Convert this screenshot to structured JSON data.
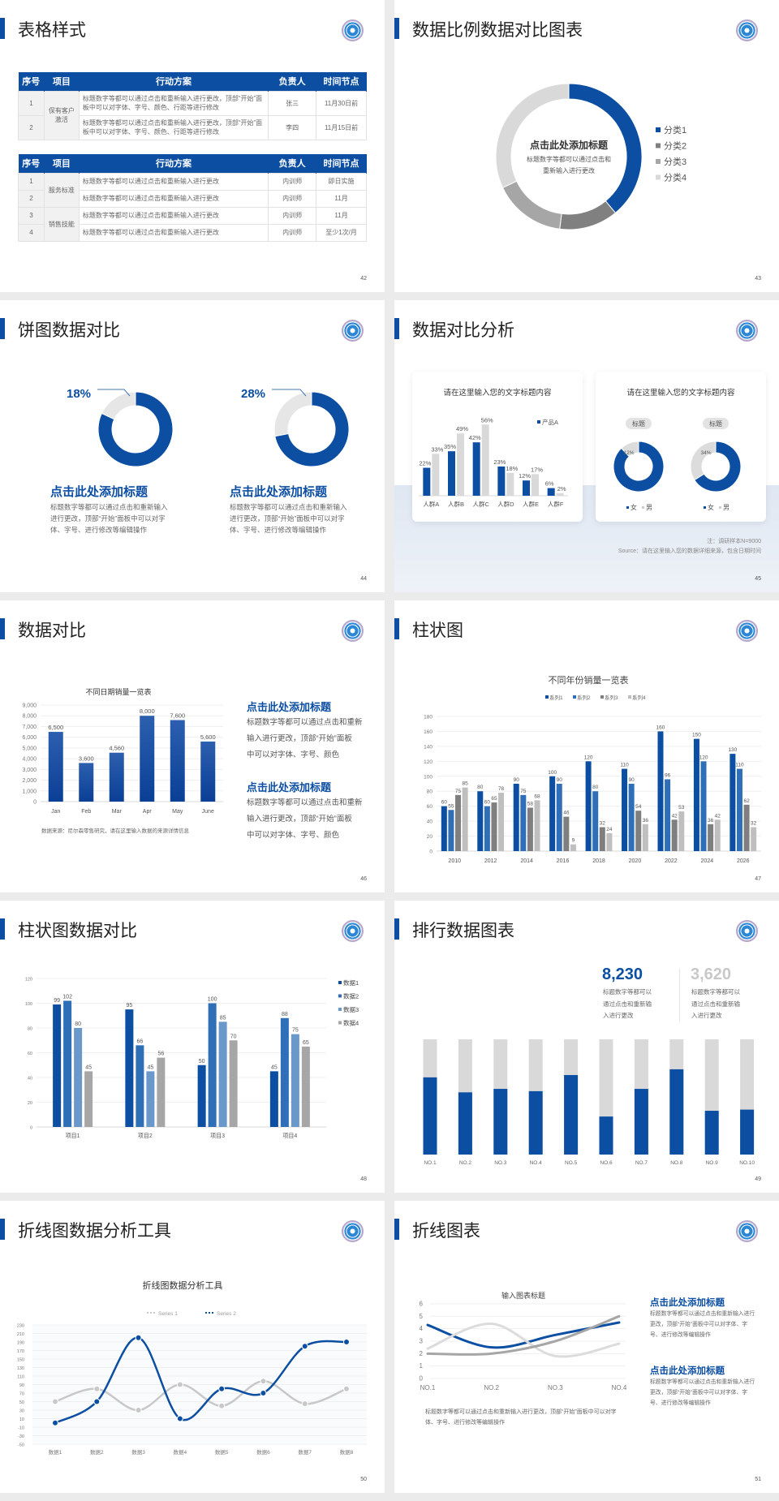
{
  "colors": {
    "blue": "#0b4ea2",
    "blue2": "#2e6fb7",
    "blue3": "#6a98cb",
    "gray": "#a6a6a6",
    "gray_dark": "#7f7f7f",
    "gray_light": "#d9d9d9"
  },
  "slides": [
    {
      "title": "表格样式",
      "page": "42",
      "table1": {
        "headers": [
          "序号",
          "项目",
          "行动方案",
          "负责人",
          "时间节点"
        ],
        "groups": [
          {
            "item": "保有客户激活",
            "rows": [
              {
                "no": "1",
                "plan": "标题数字等都可以通过点击和重新输入进行更改，顶部“开始”面板中可以对字体、字号、颜色、行距等进行修改",
                "owner": "张三",
                "time": "11月30日前"
              },
              {
                "no": "2",
                "plan": "标题数字等都可以通过点击和重新输入进行更改，顶部“开始”面板中可以对字体、字号、颜色、行距等进行修改",
                "owner": "李四",
                "time": "11月15日前"
              }
            ]
          }
        ]
      },
      "table2": {
        "headers": [
          "序号",
          "项目",
          "行动方案",
          "负责人",
          "时间节点"
        ],
        "groups": [
          {
            "item": "服务标准",
            "rows": [
              {
                "no": "1",
                "plan": "标题数字等都可以通过点击和重新输入进行更改",
                "owner": "内训师",
                "time": "即日实施"
              },
              {
                "no": "2",
                "plan": "标题数字等都可以通过点击和重新输入进行更改",
                "owner": "内训师",
                "time": "11月"
              }
            ]
          },
          {
            "item": "销售技能",
            "rows": [
              {
                "no": "3",
                "plan": "标题数字等都可以通过点击和重新输入进行更改",
                "owner": "内训师",
                "time": "11月"
              },
              {
                "no": "4",
                "plan": "标题数字等都可以通过点击和重新输入进行更改",
                "owner": "内训师",
                "time": "至少1次/月"
              }
            ]
          }
        ]
      }
    },
    {
      "title": "数据比例数据对比图表",
      "page": "43",
      "center_title": "点击此处添加标题",
      "center_text": [
        "标题数字等都可以通过点击和",
        "重新输入进行更改"
      ]
    },
    {
      "title": "饼图数据对比",
      "page": "44",
      "blocks": [
        {
          "heading": "点击此处添加标题",
          "text": "标题数字等都可以通过点击和重新输入进行更改，顶部“开始”面板中可以对字体、字号、进行修改等编辑操作"
        },
        {
          "heading": "点击此处添加标题",
          "text": "标题数字等都可以通过点击和重新输入进行更改，顶部“开始”面板中可以对字体、字号、进行修改等编辑操作"
        }
      ]
    },
    {
      "title": "数据对比分析",
      "page": "45",
      "card1_title": "请在这里输入您的文字标题内容",
      "card2_title": "请在这里输入您的文字标题内容",
      "note": "注：调研样本N=9000",
      "source": "Source：请在这里输入您的数据详细来源，包含日期时间"
    },
    {
      "title": "数据对比",
      "page": "46",
      "source": "数据来源：尼尔森零售研究，请在这里输入数据的来源详情信息",
      "blocks": [
        {
          "heading": "点击此处添加标题",
          "lines": [
            "标题数字等都可以通过点击和重新",
            "输入进行更改，顶部“开始”面板",
            "中可以对字体、字号、颜色"
          ]
        },
        {
          "heading": "点击此处添加标题",
          "lines": [
            "标题数字等都可以通过点击和重新",
            "输入进行更改，顶部“开始”面板",
            "中可以对字体、字号、颜色"
          ]
        }
      ]
    },
    {
      "title": "柱状图",
      "page": "47"
    },
    {
      "title": "柱状图数据对比",
      "page": "48"
    },
    {
      "title": "排行数据图表",
      "page": "49",
      "stats": [
        {
          "value": "8,230",
          "lines": [
            "标题数字等都可以",
            "通过点击和重新输",
            "入进行更改"
          ]
        },
        {
          "value": "3,620",
          "lines": [
            "标题数字等都可以",
            "通过点击和重新输",
            "入进行更改"
          ]
        }
      ]
    },
    {
      "title": "折线图数据分析工具",
      "page": "50"
    },
    {
      "title": "折线图表",
      "page": "51",
      "caption": [
        "标题数字等都可以通过点击和重新输入进行更改，顶部“开始”面板中可以对字",
        "体、字号、进行修改等编辑操作"
      ],
      "blocks": [
        {
          "heading": "点击此处添加标题",
          "lines": [
            "标题数字等都可以通过点击和重新输入进行",
            "更改，顶部“开始”面板中可以对字体、字",
            "号、进行修改等编辑操作"
          ]
        },
        {
          "heading": "点击此处添加标题",
          "lines": [
            "标题数字等都可以通过点击和重新输入进行",
            "更改，顶部“开始”面板中可以对字体、字",
            "号、进行修改等编辑操作"
          ]
        }
      ]
    }
  ],
  "chart_data": [
    {
      "type": "pie",
      "donut": true,
      "categories": [
        "分类1",
        "分类2",
        "分类3",
        "分类4"
      ],
      "values": [
        39,
        13,
        16,
        32
      ],
      "colors": [
        "#0b4ea2",
        "#808080",
        "#a6a6a6",
        "#d9d9d9"
      ],
      "legend": "right"
    },
    {
      "type": "pie",
      "donut": true,
      "values": [
        82,
        18
      ],
      "colors": [
        "#0b4ea2",
        "#e6e6e6"
      ],
      "label": "18%"
    },
    {
      "type": "pie",
      "donut": true,
      "values": [
        72,
        28
      ],
      "colors": [
        "#0b4ea2",
        "#e6e6e6"
      ],
      "label": "28%"
    },
    {
      "type": "bar",
      "categories": [
        "人群A",
        "人群B",
        "人群C",
        "人群D",
        "人群E",
        "人群F"
      ],
      "ylim": [
        0,
        60
      ],
      "series": [
        {
          "name": "产品A",
          "values": [
            22,
            35,
            42,
            23,
            12,
            6
          ],
          "labels": [
            "22%",
            "35%",
            "42%",
            "23%",
            "12%",
            "6%"
          ],
          "color": "#0b4ea2"
        },
        {
          "values": [
            33,
            49,
            56,
            18,
            17,
            2
          ],
          "labels": [
            "33%",
            "49%",
            "56%",
            "18%",
            "17%",
            "2%"
          ],
          "color": "#d9d9d9"
        }
      ],
      "legend": "top-right"
    },
    {
      "type": "pie",
      "donut": true,
      "title": "标题",
      "categories": [
        "女",
        "男"
      ],
      "values": [
        88,
        12
      ],
      "colors": [
        "#0b4ea2",
        "#dcdcdc"
      ],
      "label": "12%",
      "legend": "bottom"
    },
    {
      "type": "pie",
      "donut": true,
      "title": "标题",
      "categories": [
        "女",
        "男"
      ],
      "values": [
        66,
        34
      ],
      "colors": [
        "#0b4ea2",
        "#dcdcdc"
      ],
      "label": "34%",
      "legend": "bottom"
    },
    {
      "type": "bar",
      "title": "不同日期销量一览表",
      "categories": [
        "Jan",
        "Feb",
        "Mar",
        "Apr",
        "May",
        "June"
      ],
      "ylim": [
        0,
        9000
      ],
      "yticks": [
        "0",
        "1,000",
        "2,000",
        "3,000",
        "4,000",
        "5,000",
        "6,000",
        "7,000",
        "8,000",
        "9,000"
      ],
      "series": [
        {
          "values": [
            6500,
            3600,
            4560,
            8000,
            7600,
            5600
          ],
          "labels": [
            "6,500",
            "3,600",
            "4,560",
            "8,000",
            "7,600",
            "5,600"
          ],
          "color": "#0b4ea2"
        }
      ],
      "grid": true
    },
    {
      "type": "bar",
      "title": "不同年份销量一览表",
      "categories": [
        "2010",
        "2012",
        "2014",
        "2016",
        "2018",
        "2020",
        "2022",
        "2024",
        "2026"
      ],
      "ylim": [
        0,
        180
      ],
      "yticks": [
        "0",
        "20",
        "40",
        "60",
        "80",
        "100",
        "120",
        "140",
        "160",
        "180"
      ],
      "legend": "top",
      "grid": true,
      "series": [
        {
          "name": "系列1",
          "values": [
            60,
            80,
            90,
            100,
            120,
            110,
            160,
            150,
            130
          ],
          "color": "#0b4ea2"
        },
        {
          "name": "系列2",
          "values": [
            55,
            60,
            75,
            90,
            80,
            90,
            96,
            120,
            110
          ],
          "color": "#2e6fb7"
        },
        {
          "name": "系列3",
          "values": [
            75,
            65,
            58,
            46,
            32,
            54,
            42,
            36,
            62
          ],
          "color": "#7f7f7f"
        },
        {
          "name": "系列4",
          "values": [
            85,
            78,
            68,
            9,
            24,
            36,
            53,
            42,
            32
          ],
          "color": "#bfbfbf"
        }
      ]
    },
    {
      "type": "bar",
      "categories": [
        "项目1",
        "项目2",
        "项目3",
        "项目4"
      ],
      "ylim": [
        0,
        120
      ],
      "yticks": [
        "0",
        "20",
        "40",
        "60",
        "80",
        "100",
        "120"
      ],
      "legend": "right",
      "grid": true,
      "series": [
        {
          "name": "数据1",
          "values": [
            99,
            95,
            50,
            45
          ],
          "color": "#0b4ea2"
        },
        {
          "name": "数据2",
          "values": [
            102,
            66,
            100,
            88
          ],
          "color": "#2e6fb7"
        },
        {
          "name": "数据3",
          "values": [
            80,
            45,
            85,
            75
          ],
          "color": "#6a98cb"
        },
        {
          "name": "数据4",
          "values": [
            45,
            56,
            70,
            65
          ],
          "color": "#a6a6a6"
        }
      ]
    },
    {
      "type": "bar",
      "stacked": true,
      "categories": [
        "NO.1",
        "NO.2",
        "NO.3",
        "NO.4",
        "NO.5",
        "NO.6",
        "NO.7",
        "NO.8",
        "NO.9",
        "NO.10"
      ],
      "unit": "percent",
      "values": [
        67,
        54,
        57,
        55,
        69,
        33,
        57,
        74,
        38,
        39
      ],
      "colors": [
        "#0b4ea2",
        "#d9d9d9"
      ]
    },
    {
      "type": "line",
      "title": "折线图数据分析工具",
      "categories": [
        "数据1",
        "数据2",
        "数据3",
        "数据4",
        "数据5",
        "数据6",
        "数据7",
        "数据8"
      ],
      "ylim": [
        -50,
        230
      ],
      "yticks": [
        "-50",
        "-30",
        "-10",
        "10",
        "30",
        "50",
        "70",
        "90",
        "110",
        "130",
        "150",
        "170",
        "190",
        "210",
        "230"
      ],
      "legend": "top",
      "series": [
        {
          "name": "Series 1",
          "values": [
            50,
            80,
            30,
            90,
            40,
            98,
            45,
            80
          ],
          "color": "#c8c8c8"
        },
        {
          "name": "Series 2",
          "values": [
            0,
            50,
            200,
            10,
            80,
            70,
            180,
            190
          ],
          "color": "#0b4ea2"
        }
      ]
    },
    {
      "type": "line",
      "title": "输入图表标题",
      "categories": [
        "NO.1",
        "NO.2",
        "NO.3",
        "NO.4"
      ],
      "ylim": [
        0,
        6
      ],
      "yticks": [
        "0",
        "1",
        "2",
        "3",
        "4",
        "5",
        "6"
      ],
      "series": [
        {
          "values": [
            4.3,
            2.5,
            3.5,
            4.5
          ],
          "color": "#0b4ea2"
        },
        {
          "values": [
            2.4,
            4.4,
            1.8,
            2.8
          ],
          "color": "#dcdcdc"
        },
        {
          "values": [
            2.0,
            2.0,
            3.0,
            5.0
          ],
          "color": "#a6a6a6"
        }
      ]
    }
  ]
}
